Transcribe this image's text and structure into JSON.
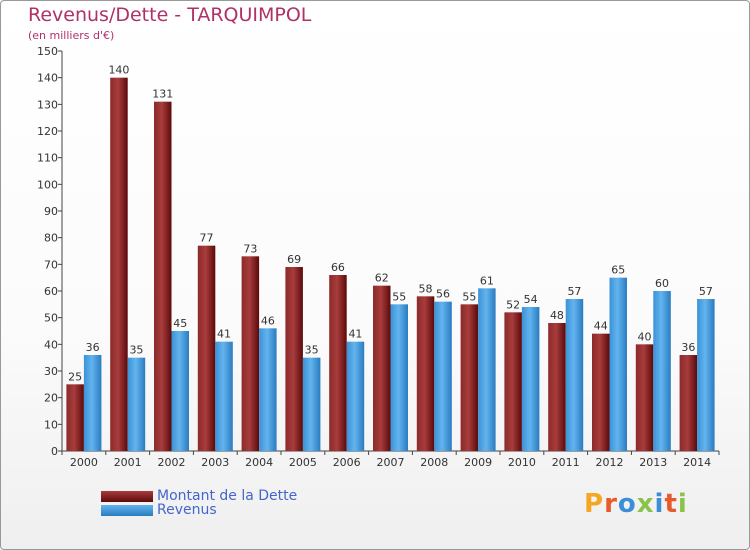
{
  "chart_data": {
    "type": "bar",
    "title": "Revenus/Dette - TARQUIMPOL",
    "subtitle": "(en milliers d'€)",
    "xlabel": "",
    "ylabel": "",
    "ylim": [
      0,
      150
    ],
    "yticks": [
      0,
      10,
      20,
      30,
      40,
      50,
      60,
      70,
      80,
      90,
      100,
      110,
      120,
      130,
      140,
      150
    ],
    "categories": [
      "2000",
      "2001",
      "2002",
      "2003",
      "2004",
      "2005",
      "2006",
      "2007",
      "2008",
      "2009",
      "2010",
      "2011",
      "2012",
      "2013",
      "2014"
    ],
    "series": [
      {
        "name": "Montant de la Dette",
        "color": "#7a1a1a",
        "values": [
          25,
          140,
          131,
          77,
          73,
          69,
          66,
          62,
          58,
          55,
          52,
          48,
          44,
          40,
          36
        ]
      },
      {
        "name": "Revenus",
        "color": "#3d9ce0",
        "values": [
          36,
          35,
          45,
          41,
          46,
          35,
          41,
          55,
          56,
          61,
          54,
          57,
          65,
          60,
          57
        ]
      }
    ],
    "grid": false,
    "legend": "bottom-left"
  },
  "logo": {
    "text": "Proxiti"
  }
}
